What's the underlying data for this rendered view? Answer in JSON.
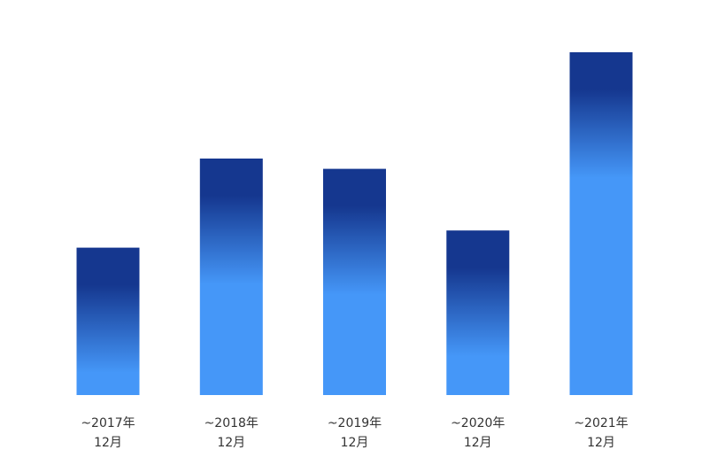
{
  "chart_data": {
    "type": "bar",
    "categories": [
      [
        "~2017年",
        "12月"
      ],
      [
        "~2018年",
        "12月"
      ],
      [
        "~2019年",
        "12月"
      ],
      [
        "~2020年",
        "12月"
      ],
      [
        "~2021年",
        "12月"
      ]
    ],
    "values": [
      43,
      69,
      66,
      48,
      100
    ],
    "value_scale": "relative (tallest bar = 100); no y-axis printed",
    "title": "",
    "xlabel": "",
    "ylabel": "",
    "ylim": [
      0,
      100
    ],
    "grid": false,
    "legend": "none",
    "colors": {
      "bar_top": "#15378f",
      "bar_bottom": "#4597f8"
    }
  }
}
